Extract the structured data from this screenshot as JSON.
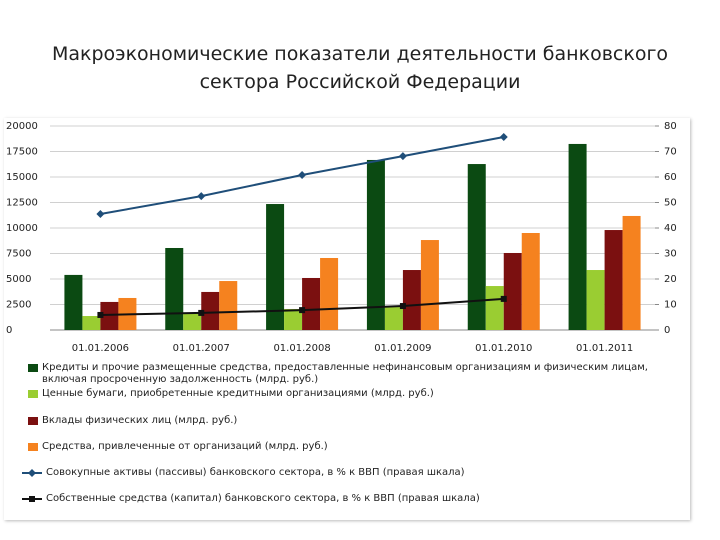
{
  "chart_data": {
    "type": "bar",
    "title": "Макроэкономические показатели деятельности банковского сектора Российской Федерации",
    "categories": [
      "01.01.2006",
      "01.01.2007",
      "01.01.2008",
      "01.01.2009",
      "01.01.2010",
      "01.01.2011"
    ],
    "series": [
      {
        "name": "Кредиты и прочие размещенные средства, предоставленные нефинансовым организациям и физическим лицам, включая просроченную задолженность (млрд. руб.)",
        "color": "#0b4a12",
        "type": "bar",
        "values": [
          5400,
          8040,
          12350,
          16670,
          16270,
          18240
        ]
      },
      {
        "name": "Ценные бумаги, приобретенные кредитными организациями (млрд. руб.)",
        "color": "#9acd32",
        "type": "bar",
        "values": [
          1370,
          1670,
          2060,
          2250,
          4310,
          5880
        ]
      },
      {
        "name": "Вклады физических лиц (млрд. руб.)",
        "color": "#7b1010",
        "type": "bar",
        "values": [
          2750,
          3730,
          5100,
          5880,
          7550,
          9800
        ]
      },
      {
        "name": "Средства, привлеченные от организаций (млрд. руб.)",
        "color": "#f5821f",
        "type": "bar",
        "values": [
          3140,
          4800,
          7060,
          8820,
          9510,
          11180
        ]
      },
      {
        "name": "Совокупные активы (пассивы) банковского сектора, в % к ВВП (правая шкала)",
        "color": "#1f4e79",
        "type": "line",
        "marker": "diamond",
        "axis": "y2",
        "values": [
          45.5,
          52.5,
          60.8,
          68.2,
          75.7,
          null
        ]
      },
      {
        "name": "Собственные средства (капитал) банковского сектора, в % к ВВП (правая шкала)",
        "color": "#111111",
        "type": "line",
        "marker": "square",
        "axis": "y2",
        "values": [
          5.9,
          6.7,
          7.8,
          9.4,
          12.2,
          null
        ]
      }
    ],
    "ylim": [
      0,
      20000
    ],
    "yticks": [
      0,
      2500,
      5000,
      7500,
      10000,
      12500,
      15000,
      17500,
      20000
    ],
    "y2lim": [
      0,
      80
    ],
    "y2ticks": [
      0,
      10,
      20,
      30,
      40,
      50,
      60,
      70,
      80
    ],
    "grid": true
  }
}
